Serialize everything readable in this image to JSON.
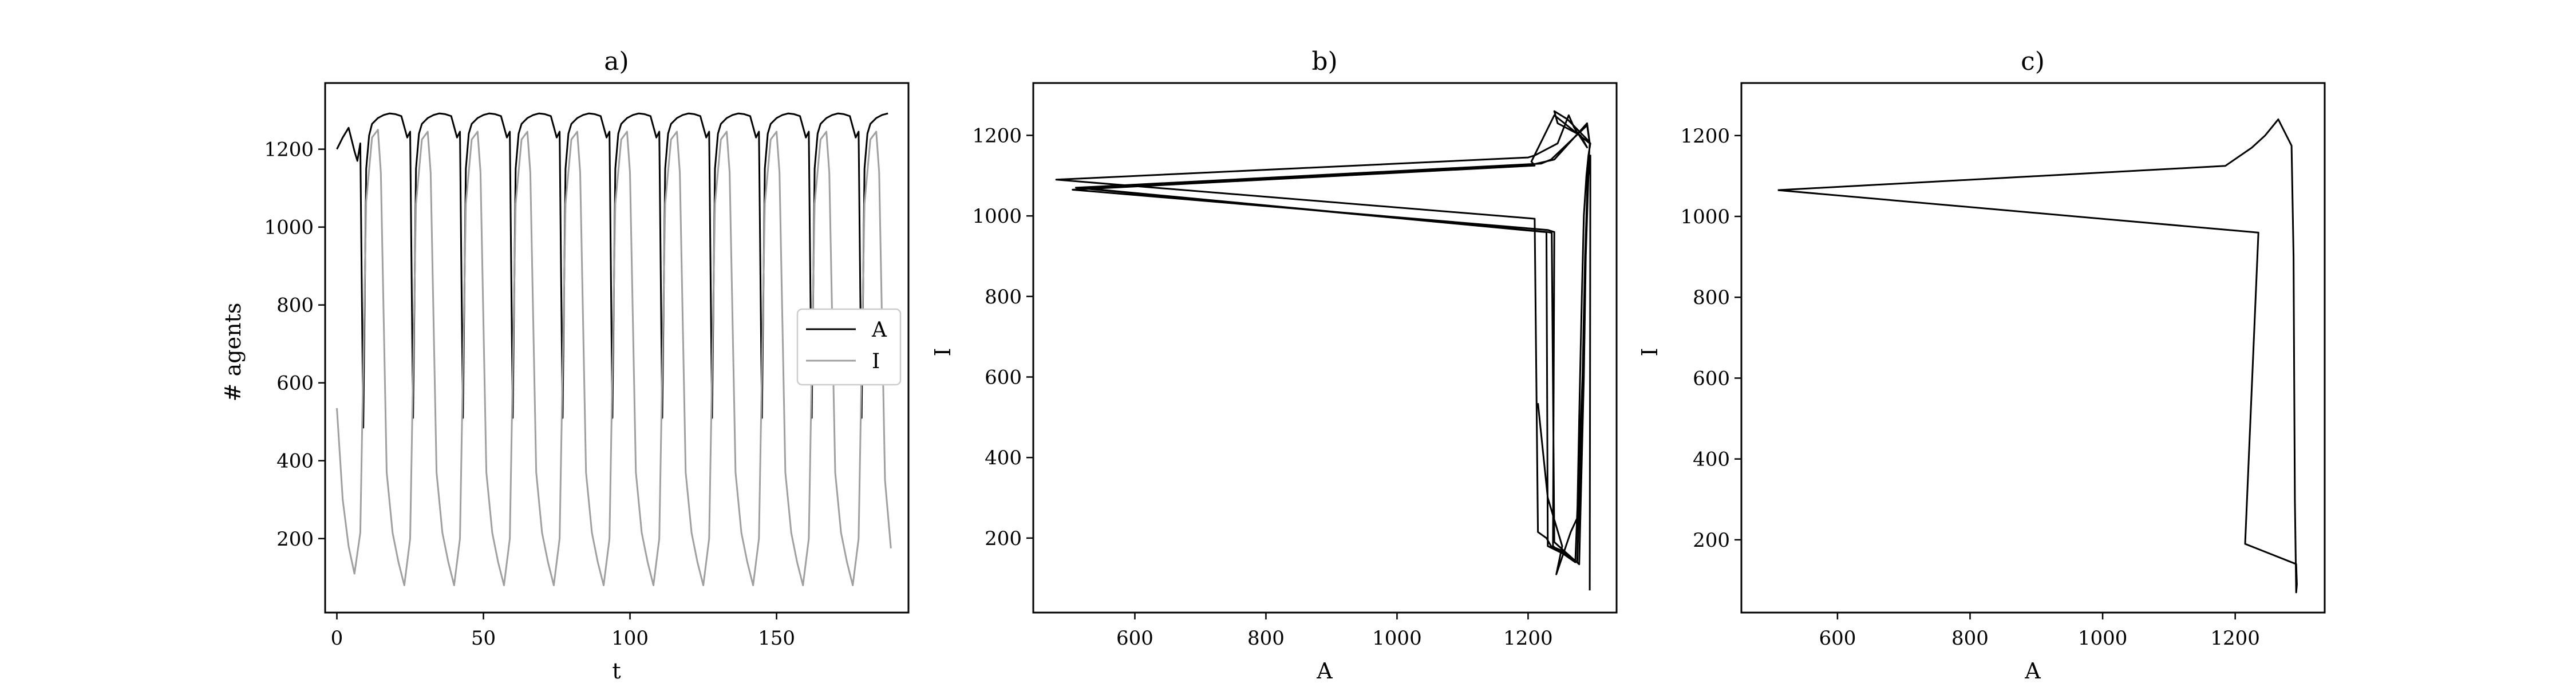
{
  "chart_data": [
    {
      "type": "line",
      "title": "a)",
      "xlabel": "t",
      "ylabel": "# agents",
      "xlim": [
        -4,
        195
      ],
      "ylim": [
        10,
        1370
      ],
      "xticks": [
        0,
        50,
        100,
        150
      ],
      "yticks": [
        200,
        400,
        600,
        800,
        1000,
        1200
      ],
      "legend": {
        "placement": "center-right",
        "entries": [
          "A",
          "I"
        ]
      },
      "grid": false,
      "period": 16.8,
      "series": [
        {
          "name": "A",
          "color": "#000000",
          "x": [
            0,
            2,
            4,
            6,
            7,
            8,
            9,
            10,
            11,
            12,
            14,
            16,
            18,
            20,
            22,
            24,
            25,
            26,
            27,
            28,
            29,
            31,
            33,
            35,
            37,
            39,
            41,
            42,
            43,
            44,
            45,
            46,
            48,
            50,
            52,
            54,
            56,
            58,
            59,
            60,
            61,
            62,
            63,
            65,
            67,
            69,
            71,
            73,
            75,
            76,
            77,
            78,
            79,
            80,
            82,
            84,
            86,
            88,
            90,
            92,
            93,
            94,
            95,
            96,
            97,
            99,
            101,
            103,
            105,
            107,
            109,
            110,
            111,
            112,
            113,
            114,
            116,
            118,
            120,
            122,
            124,
            126,
            127,
            128,
            129,
            130,
            131,
            133,
            135,
            137,
            139,
            141,
            143,
            144,
            145,
            146,
            147,
            148,
            150,
            152,
            154,
            156,
            158,
            160,
            161,
            162,
            163,
            164,
            165,
            167,
            169,
            171,
            173,
            175,
            177,
            178,
            179,
            180,
            181,
            182,
            184,
            186,
            188
          ],
          "y": [
            1200,
            1230,
            1255,
            1195,
            1170,
            1215,
            485,
            1150,
            1235,
            1265,
            1280,
            1288,
            1292,
            1290,
            1285,
            1230,
            1245,
            510,
            1150,
            1240,
            1265,
            1280,
            1288,
            1292,
            1290,
            1285,
            1230,
            1245,
            510,
            1150,
            1240,
            1265,
            1280,
            1288,
            1292,
            1290,
            1285,
            1230,
            1245,
            510,
            1150,
            1240,
            1265,
            1280,
            1288,
            1292,
            1290,
            1285,
            1230,
            1245,
            510,
            1150,
            1240,
            1265,
            1280,
            1288,
            1292,
            1290,
            1285,
            1230,
            1245,
            510,
            1150,
            1240,
            1265,
            1280,
            1288,
            1292,
            1290,
            1285,
            1230,
            1245,
            510,
            1150,
            1240,
            1265,
            1280,
            1288,
            1292,
            1290,
            1285,
            1230,
            1245,
            510,
            1150,
            1240,
            1265,
            1280,
            1288,
            1292,
            1290,
            1285,
            1230,
            1245,
            510,
            1150,
            1240,
            1265,
            1280,
            1288,
            1292,
            1290,
            1285,
            1230,
            1245,
            510,
            1150,
            1240,
            1265,
            1280,
            1288,
            1292,
            1290,
            1285,
            1230,
            1245,
            510,
            1150,
            1240,
            1265,
            1280,
            1288,
            1292
          ]
        },
        {
          "name": "I",
          "color": "#a0a0a0",
          "x": [
            0,
            2,
            4,
            6,
            8,
            10,
            12,
            14,
            15,
            17,
            19,
            21,
            23,
            25,
            27,
            29,
            31,
            32,
            34,
            36,
            38,
            40,
            42,
            44,
            46,
            48,
            49,
            51,
            53,
            55,
            57,
            59,
            61,
            63,
            65,
            66,
            68,
            70,
            72,
            74,
            76,
            78,
            80,
            82,
            83,
            85,
            87,
            89,
            91,
            93,
            95,
            97,
            99,
            100,
            102,
            104,
            106,
            108,
            110,
            112,
            114,
            116,
            117,
            119,
            121,
            123,
            125,
            127,
            129,
            131,
            133,
            134,
            136,
            138,
            140,
            142,
            144,
            146,
            148,
            150,
            151,
            153,
            155,
            157,
            159,
            161,
            163,
            165,
            167,
            168,
            170,
            172,
            174,
            176,
            178,
            180,
            182,
            184,
            185,
            187,
            189
          ],
          "y": [
            535,
            300,
            180,
            110,
            215,
            1065,
            1230,
            1250,
            1140,
            370,
            215,
            140,
            80,
            200,
            1060,
            1225,
            1245,
            1140,
            370,
            215,
            140,
            80,
            200,
            1060,
            1225,
            1245,
            1140,
            370,
            215,
            140,
            80,
            200,
            1060,
            1225,
            1245,
            1140,
            370,
            215,
            140,
            80,
            200,
            1060,
            1225,
            1245,
            1140,
            370,
            215,
            140,
            80,
            200,
            1060,
            1225,
            1245,
            1140,
            370,
            215,
            140,
            80,
            200,
            1060,
            1225,
            1245,
            1140,
            370,
            215,
            140,
            80,
            200,
            1060,
            1225,
            1245,
            1140,
            370,
            215,
            140,
            80,
            200,
            1060,
            1225,
            1245,
            1140,
            370,
            215,
            140,
            80,
            200,
            1060,
            1225,
            1245,
            1140,
            370,
            215,
            140,
            80,
            200,
            1060,
            1225,
            1245,
            1140,
            350,
            175
          ]
        }
      ]
    },
    {
      "type": "line",
      "title": "b)",
      "xlabel": "A",
      "ylabel": "I",
      "xlim": [
        445,
        1335
      ],
      "ylim": [
        15,
        1330
      ],
      "xticks": [
        600,
        800,
        1000,
        1200
      ],
      "yticks": [
        200,
        400,
        600,
        800,
        1000,
        1200
      ],
      "grid": false,
      "series": [
        {
          "color": "#000000",
          "x": [
            1215,
            1230,
            1252,
            1243,
            1265,
            1275,
            1278,
            1282,
            1285,
            1289,
            1292,
            1295,
            1290,
            1260,
            1240,
            1245,
            1280,
            1290,
            1270,
            1262,
            1245,
            1210,
            1200,
            480,
            1195,
            1210,
            1215,
            1228,
            1235,
            1250,
            1272,
            1283,
            1287,
            1291,
            1293,
            1294,
            1240,
            1205,
            1210,
            505,
            1230,
            1240,
            1238,
            1250,
            1272,
            1283,
            1287,
            1291,
            1293,
            1294,
            1290,
            1235,
            1220,
            510,
            1225,
            1228,
            1230,
            1255,
            1275,
            1284,
            1288,
            1291,
            1293,
            1294,
            1290,
            1240,
            1208,
            515,
            1230,
            1236,
            1240,
            1257,
            1278,
            1285,
            1288,
            1292,
            1295,
            1294
          ],
          "y": [
            535,
            300,
            180,
            110,
            215,
            250,
            500,
            800,
            1000,
            1100,
            1150,
            1180,
            1190,
            1240,
            1260,
            1230,
            1200,
            1170,
            1220,
            1250,
            1180,
            1150,
            1145,
            1090,
            995,
            993,
            215,
            200,
            180,
            170,
            140,
            600,
            900,
            1100,
            1150,
            1180,
            1250,
            1135,
            1125,
            1065,
            965,
            960,
            180,
            165,
            140,
            600,
            900,
            1100,
            1150,
            1180,
            1225,
            1140,
            1130,
            1070,
            960,
            960,
            180,
            160,
            140,
            600,
            900,
            1100,
            1150,
            1180,
            1230,
            1140,
            1128,
            1070,
            960,
            958,
            190,
            165,
            135,
            600,
            900,
            1100,
            1150,
            70
          ]
        }
      ]
    },
    {
      "type": "line",
      "title": "c)",
      "xlabel": "A",
      "ylabel": "I",
      "xlim": [
        455,
        1335
      ],
      "ylim": [
        20,
        1330
      ],
      "xticks": [
        600,
        800,
        1000,
        1200
      ],
      "yticks": [
        200,
        400,
        600,
        800,
        1000,
        1200
      ],
      "grid": false,
      "series": [
        {
          "color": "#000000",
          "x": [
            510,
            1235,
            1235,
            1215,
            1292,
            1293,
            1292,
            1290,
            1289,
            1288,
            1285,
            1265,
            1245,
            1225,
            1185,
            510
          ],
          "y": [
            1065,
            960,
            960,
            190,
            140,
            90,
            70,
            300,
            600,
            900,
            1175,
            1240,
            1200,
            1170,
            1125,
            1065
          ]
        }
      ]
    }
  ]
}
